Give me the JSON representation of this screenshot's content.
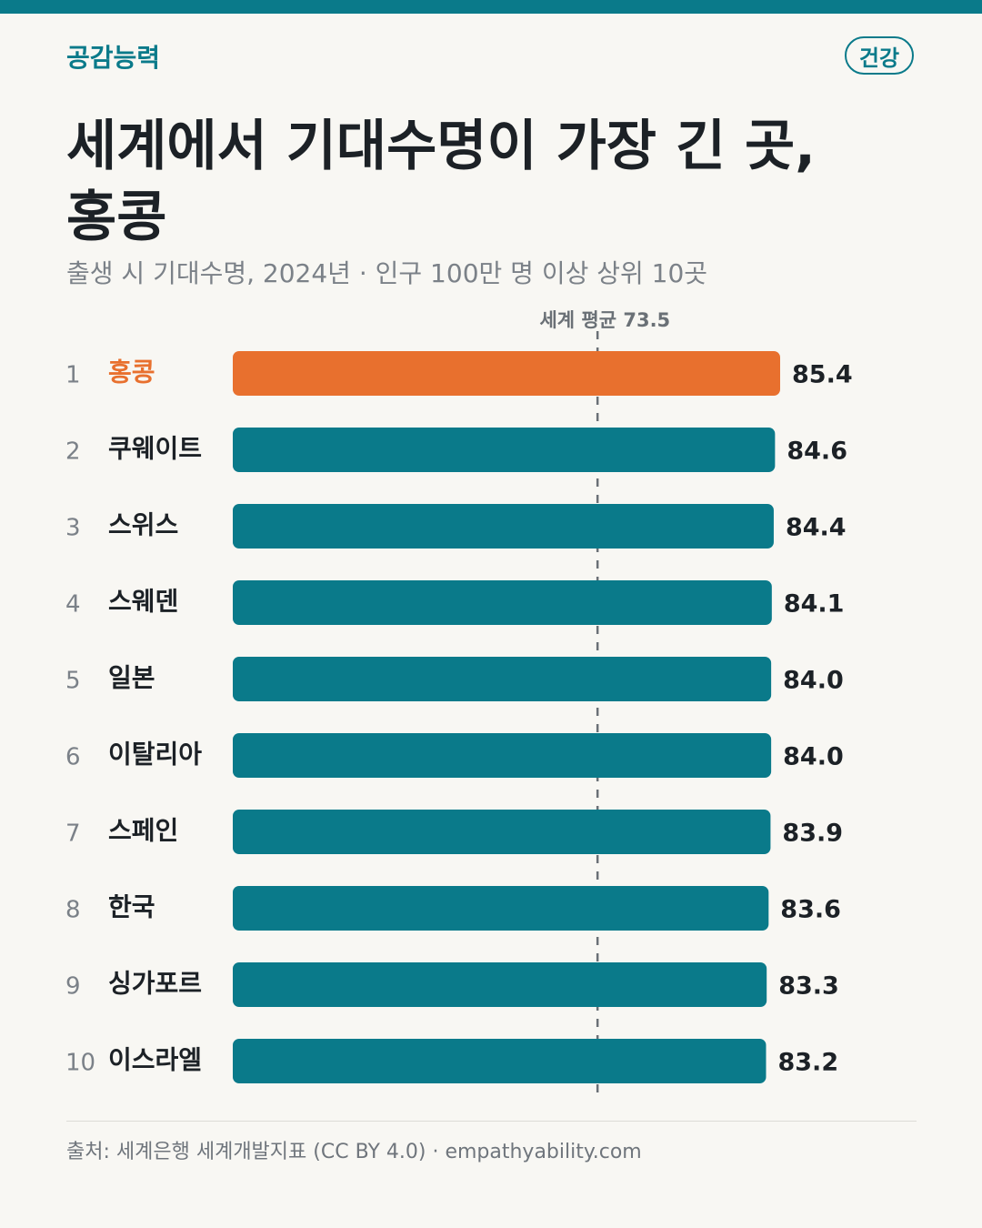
{
  "header": {
    "brand": "공감능력",
    "badge": "건강",
    "title_line1": "세계에서 기대수명이 가장 긴 곳,",
    "title_line2": "홍콩",
    "subtitle": "출생 시 기대수명, 2024년 · 인구 100만 명 이상 상위 10곳"
  },
  "colors": {
    "accent": "#0a7a8a",
    "highlight": "#e8702e",
    "text": "#1c2126",
    "muted": "#7b8188",
    "background": "#f8f7f3"
  },
  "chart_data": {
    "type": "bar",
    "orientation": "horizontal",
    "categories": [
      "홍콩",
      "쿠웨이트",
      "스위스",
      "스웨덴",
      "일본",
      "이탈리아",
      "스페인",
      "한국",
      "싱가포르",
      "이스라엘"
    ],
    "ranks": [
      "1",
      "2",
      "3",
      "4",
      "5",
      "6",
      "7",
      "8",
      "9",
      "10"
    ],
    "values": [
      85.4,
      84.6,
      84.4,
      84.1,
      84.0,
      84.0,
      83.9,
      83.6,
      83.3,
      83.2
    ],
    "value_labels": [
      "85.4",
      "84.6",
      "84.4",
      "84.1",
      "84.0",
      "84.0",
      "83.9",
      "83.6",
      "83.3",
      "83.2"
    ],
    "highlight_index": 0,
    "reference_line": {
      "label": "세계 평균 73.5",
      "value": 73.5,
      "style": "dashed"
    },
    "xlim": [
      0,
      85.4
    ],
    "axis_visible": false,
    "grid": false,
    "legend": "none"
  },
  "footer": {
    "source": "출처: 세계은행 세계개발지표 (CC BY 4.0) · empathyability.com"
  }
}
